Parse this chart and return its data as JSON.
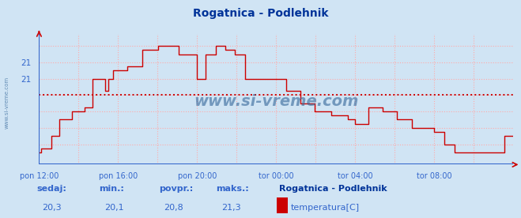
{
  "title": "Rogatnica - Podlehnik",
  "title_color": "#003399",
  "bg_color": "#d0e4f4",
  "plot_bg_color": "#d0e4f4",
  "line_color": "#cc0000",
  "grid_color": "#ffaaaa",
  "axis_color": "#3366cc",
  "avg_value": 20.8,
  "y_min": 19.95,
  "y_max": 21.55,
  "ytick_vals": [
    21.0,
    21.2
  ],
  "ytick_labels": [
    "21",
    "21"
  ],
  "x_min": 0,
  "x_max": 1152,
  "xtick_positions": [
    0,
    192,
    384,
    576,
    768,
    960
  ],
  "xtick_labels": [
    "pon 12:00",
    "pon 16:00",
    "pon 20:00",
    "tor 00:00",
    "tor 04:00",
    "tor 08:00"
  ],
  "watermark": "www.si-vreme.com",
  "watermark_color": "#336699",
  "footer_labels": [
    "sedaj:",
    "min.:",
    "povpr.:",
    "maks.:"
  ],
  "footer_values": [
    "20,3",
    "20,1",
    "20,8",
    "21,3"
  ],
  "footer_station": "Rogatnica - Podlehnik",
  "footer_series": "temperatura[C]",
  "legend_color": "#cc0000",
  "temp_x": [
    0,
    5,
    5,
    30,
    30,
    50,
    50,
    80,
    80,
    110,
    110,
    130,
    130,
    160,
    160,
    168,
    168,
    180,
    180,
    192,
    192,
    215,
    215,
    250,
    250,
    290,
    290,
    340,
    340,
    384,
    384,
    405,
    405,
    430,
    430,
    453,
    453,
    476,
    476,
    500,
    500,
    576,
    576,
    600,
    600,
    635,
    635,
    670,
    670,
    710,
    710,
    750,
    750,
    768,
    768,
    800,
    800,
    835,
    835,
    870,
    870,
    905,
    905,
    960,
    960,
    985,
    985,
    1010,
    1010,
    1050,
    1050,
    1080,
    1080,
    1110,
    1110,
    1130,
    1130,
    1152
  ],
  "temp_y": [
    20.1,
    20.1,
    20.15,
    20.15,
    20.3,
    20.3,
    20.5,
    20.5,
    20.6,
    20.6,
    20.65,
    20.65,
    21.0,
    21.0,
    20.85,
    20.85,
    21.0,
    21.0,
    21.1,
    21.1,
    21.1,
    21.1,
    21.15,
    21.15,
    21.35,
    21.35,
    21.4,
    21.4,
    21.3,
    21.3,
    21.0,
    21.0,
    21.3,
    21.3,
    21.4,
    21.4,
    21.35,
    21.35,
    21.3,
    21.3,
    21.0,
    21.0,
    21.0,
    21.0,
    20.85,
    20.85,
    20.7,
    20.7,
    20.6,
    20.6,
    20.55,
    20.55,
    20.5,
    20.5,
    20.45,
    20.45,
    20.65,
    20.65,
    20.6,
    20.6,
    20.5,
    20.5,
    20.4,
    20.4,
    20.35,
    20.35,
    20.2,
    20.2,
    20.1,
    20.1,
    20.1,
    20.1,
    20.1,
    20.1,
    20.1,
    20.1,
    20.3,
    20.3
  ]
}
